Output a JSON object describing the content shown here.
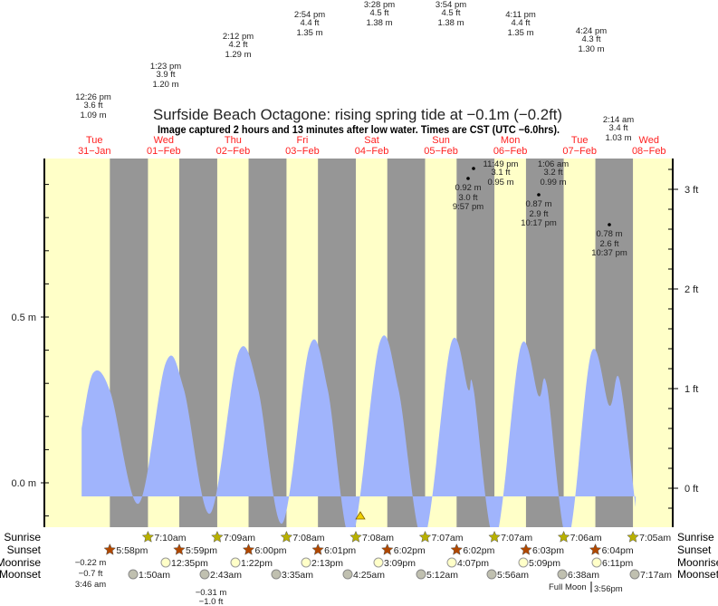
{
  "chart_data": {
    "type": "area",
    "title": "Surfside Beach Octagone: rising  spring tide at −0.1m (−0.2ft)",
    "subtitle": "Image captured 2 hours and 13 minutes after low water. Times are CST (UTC −6.0hrs).",
    "x_unit": "hours since Tue 31-Jan 00:00",
    "xlim": [
      -5.4,
      212.2
    ],
    "ylim_m": [
      -0.135,
      0.99
    ],
    "left_axis": {
      "unit": "m",
      "tick_labels": [
        {
          "value": 0.0,
          "label": "0.0 m"
        },
        {
          "value": 0.5,
          "label": "0.5 m"
        }
      ]
    },
    "right_axis": {
      "unit": "ft",
      "tick_labels": [
        {
          "value": 0,
          "label": "0 ft"
        },
        {
          "value": 1,
          "label": "1 ft"
        },
        {
          "value": 2,
          "label": "2 ft"
        },
        {
          "value": 3,
          "label": "3 ft"
        }
      ]
    },
    "days": [
      {
        "day": "Tue",
        "date": "31−Jan"
      },
      {
        "day": "Wed",
        "date": "01−Feb"
      },
      {
        "day": "Thu",
        "date": "02−Feb"
      },
      {
        "day": "Fri",
        "date": "03−Feb"
      },
      {
        "day": "Sat",
        "date": "04−Feb"
      },
      {
        "day": "Sun",
        "date": "05−Feb"
      },
      {
        "day": "Mon",
        "date": "06−Feb"
      },
      {
        "day": "Tue",
        "date": "07−Feb"
      },
      {
        "day": "Wed",
        "date": "08−Feb"
      }
    ],
    "series": [
      {
        "name": "tide height (m)",
        "x": [
          8.2,
          12.2,
          18.2,
          27.9,
          37.3,
          43.6,
          52.7,
          62.4,
          69.3,
          77.7,
          87.1,
          93.4,
          101.6,
          111.3,
          117.9,
          126.6,
          136.1,
          142.0,
          143.9,
          151.4,
          160.2,
          166.4,
          169.3,
          176.5,
          184.6,
          190.9,
          194.4,
          200.0
        ],
        "y": [
          0.18,
          0.35,
          0.29,
          -0.05,
          0.38,
          0.3,
          -0.08,
          0.41,
          0.3,
          -0.11,
          0.43,
          0.3,
          -0.16,
          0.44,
          0.3,
          -0.16,
          0.44,
          0.3,
          0.3,
          -0.16,
          0.43,
          0.28,
          0.31,
          -0.16,
          0.41,
          0.25,
          0.33,
          -0.06
        ]
      }
    ],
    "high_tide_labels": [
      {
        "time": "12:26 pm",
        "ft": "3.6 ft",
        "m": "1.09 m"
      },
      {
        "time": "1:23 pm",
        "ft": "3.9 ft",
        "m": "1.20 m"
      },
      {
        "time": "2:12 pm",
        "ft": "4.2 ft",
        "m": "1.29 m"
      },
      {
        "time": "2:54 pm",
        "ft": "4.4 ft",
        "m": "1.35 m"
      },
      {
        "time": "3:28 pm",
        "ft": "4.5 ft",
        "m": "1.38 m"
      },
      {
        "time": "3:54 pm",
        "ft": "4.5 ft",
        "m": "1.38 m"
      },
      {
        "time": "4:11 pm",
        "ft": "4.4 ft",
        "m": "1.35 m"
      },
      {
        "time": "4:24 pm",
        "ft": "4.3 ft",
        "m": "1.30 m"
      },
      {
        "time": "11:49 pm",
        "ft": "3.1 ft",
        "m": "0.95 m"
      },
      {
        "time": "1:06 am",
        "ft": "3.2 ft",
        "m": "0.99 m"
      },
      {
        "time": "2:14 am",
        "ft": "3.4 ft",
        "m": "1.03 m"
      }
    ],
    "dot_labels": [
      {
        "m": "0.92 m",
        "ft": "3.0 ft",
        "time": "9:57 pm"
      },
      {
        "m": "0.87 m",
        "ft": "2.9 ft",
        "time": "10:17 pm"
      },
      {
        "m": "0.78 m",
        "ft": "2.6 ft",
        "time": "10:37 pm"
      }
    ],
    "low_tide_labels": [
      {
        "m": "−0.22 m",
        "ft": "−0.7 ft",
        "time": "3:46 am"
      },
      {
        "m": "−0.31 m",
        "ft": "−1.0 ft"
      }
    ],
    "rows": {
      "sunrise": "Sunrise",
      "sunset": "Sunset",
      "moonrise": "Moonrise",
      "moonset": "Moonset"
    },
    "sunrise": [
      "7:10am",
      "7:09am",
      "7:08am",
      "7:08am",
      "7:07am",
      "7:07am",
      "7:06am",
      "7:05am"
    ],
    "sunset": [
      "5:58pm",
      "5:59pm",
      "6:00pm",
      "6:01pm",
      "6:02pm",
      "6:02pm",
      "6:03pm",
      "6:04pm"
    ],
    "moonrise": [
      "12:35pm",
      "1:22pm",
      "2:13pm",
      "3:09pm",
      "4:07pm",
      "5:09pm",
      "6:11pm"
    ],
    "moonset": [
      "1:50am",
      "2:43am",
      "3:35am",
      "4:25am",
      "5:12am",
      "5:56am",
      "6:38am",
      "7:17am"
    ],
    "moon_phase": "Full Moon",
    "moon_phase_time": "3:56pm",
    "colors": {
      "day": "#ffffc8",
      "night": "#969696",
      "water": "#a0b4fc",
      "day_label": "#ff2020",
      "sun": "#b8b000",
      "sunset": "#b04800",
      "moonrise": "#ffffc8",
      "moonset": "#c0c0b0"
    }
  }
}
